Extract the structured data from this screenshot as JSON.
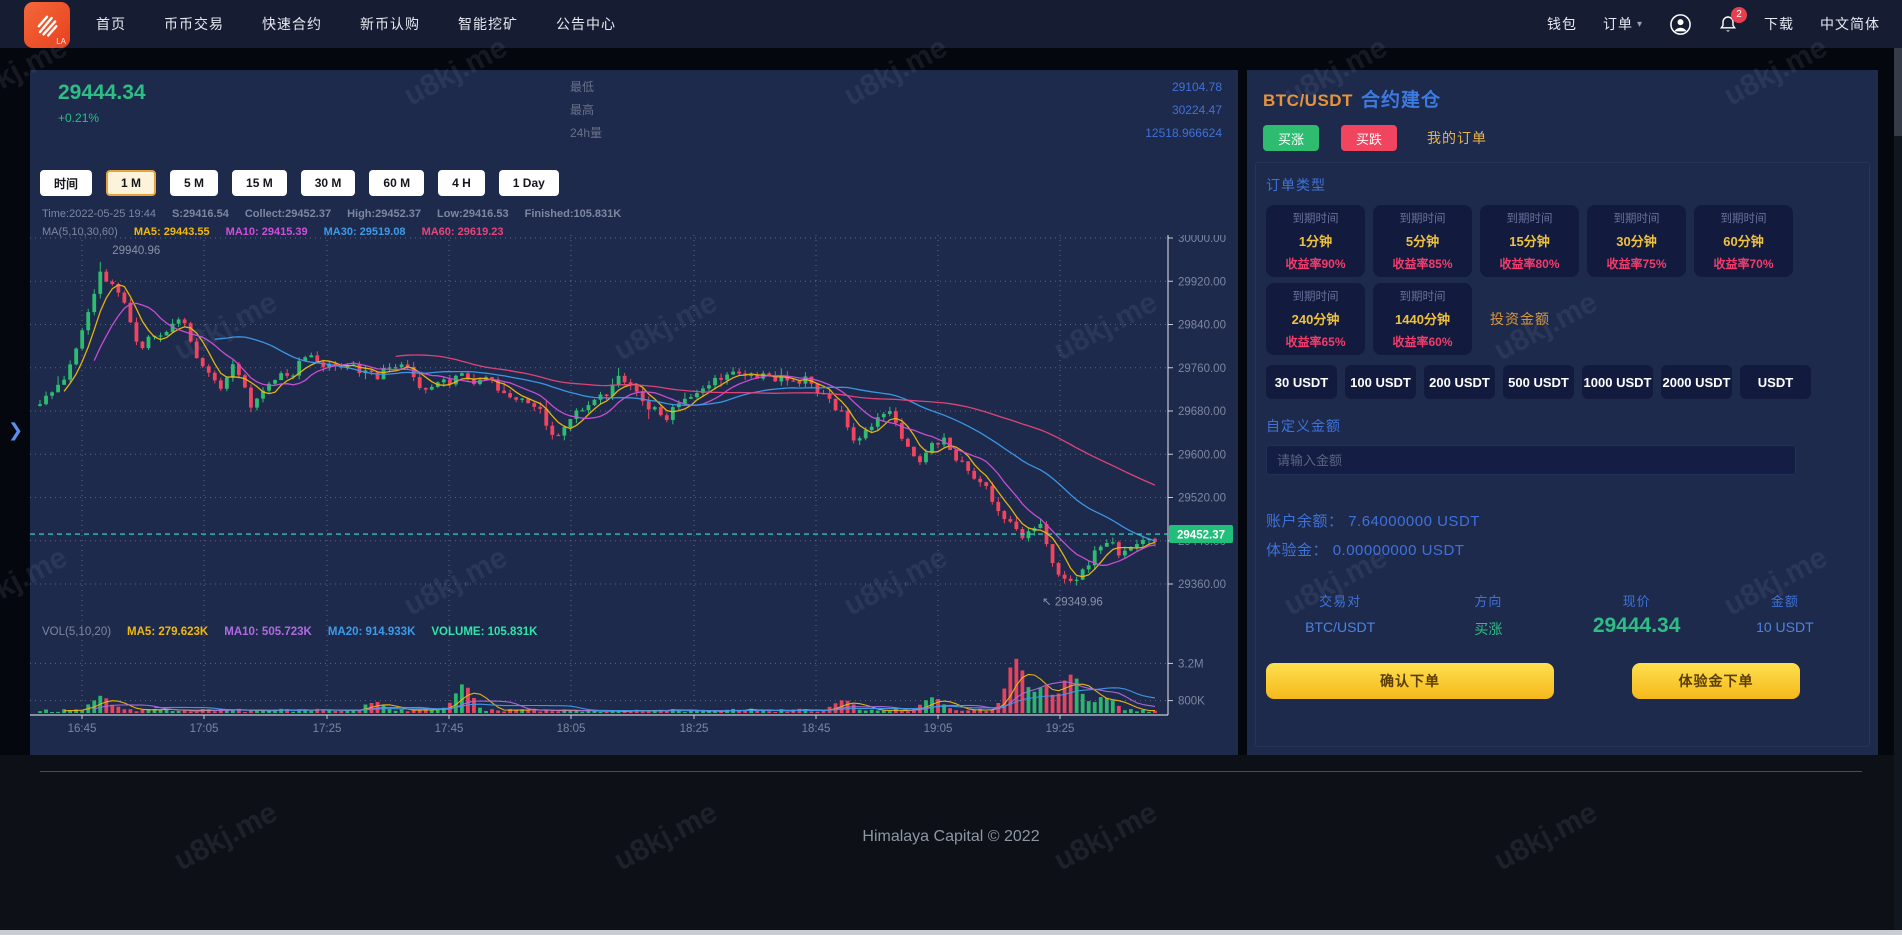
{
  "watermark": {
    "text": "u8kj.me"
  },
  "navbar": {
    "logo_text": "LA",
    "items": [
      "首页",
      "币币交易",
      "快速合约",
      "新币认购",
      "智能挖矿",
      "公告中心"
    ],
    "wallet": "钱包",
    "orders": "订单",
    "badge": "2",
    "download": "下载",
    "language": "中文简体"
  },
  "ticker": {
    "price": "29444.34",
    "change": "+0.21%",
    "stats": [
      {
        "label": "最低",
        "value": "29104.78"
      },
      {
        "label": "最高",
        "value": "30224.47"
      },
      {
        "label": "24h量",
        "value": "12518.966624"
      }
    ]
  },
  "chart": {
    "intervals": [
      {
        "label": "时间"
      },
      {
        "label": "1 M"
      },
      {
        "label": "5 M"
      },
      {
        "label": "15 M"
      },
      {
        "label": "30 M"
      },
      {
        "label": "60 M"
      },
      {
        "label": "4 H"
      },
      {
        "label": "1 Day"
      }
    ],
    "active_interval": 1,
    "legend1": [
      {
        "text": "Time:2022-05-25 19:44",
        "color": "#7e86a0"
      },
      {
        "text": "S:29416.54",
        "color": "#7e86a0"
      },
      {
        "text": "Collect:29452.37",
        "color": "#7e86a0"
      },
      {
        "text": "High:29452.37",
        "color": "#7e86a0"
      },
      {
        "text": "Low:29416.53",
        "color": "#7e86a0"
      },
      {
        "text": "Finished:105.831K",
        "color": "#7e86a0"
      }
    ],
    "legend2": [
      {
        "text": "MA(5,10,30,60)",
        "color": "#7e86a0"
      },
      {
        "text": "MA5: 29443.55",
        "color": "#f0b90b"
      },
      {
        "text": "MA10: 29415.39",
        "color": "#cf4fd8"
      },
      {
        "text": "MA30: 29519.08",
        "color": "#3d9be9"
      },
      {
        "text": "MA60: 29619.23",
        "color": "#e8447a"
      }
    ],
    "vol_legend": [
      {
        "text": "VOL(5,10,20)",
        "color": "#7e86a0"
      },
      {
        "text": "MA5: 279.623K",
        "color": "#f0b90b"
      },
      {
        "text": "MA10: 505.723K",
        "color": "#b06ae0"
      },
      {
        "text": "MA20: 914.933K",
        "color": "#3d9be9"
      },
      {
        "text": "VOLUME: 105.831K",
        "color": "#2ee6a8"
      }
    ]
  },
  "chart_data": {
    "type": "candlestick",
    "symbol": "BTC/USDT",
    "interval": "1m",
    "x_ticks": [
      "16:45",
      "17:05",
      "17:25",
      "17:45",
      "18:05",
      "18:25",
      "18:45",
      "19:05",
      "19:25"
    ],
    "y_ticks": [
      30000,
      29920,
      29840,
      29760,
      29680,
      29600,
      29520,
      29440,
      29360
    ],
    "vol_ticks": [
      {
        "label": "3.2M",
        "value_k": 3200
      },
      {
        "label": "800K",
        "value_k": 800
      }
    ],
    "current_price": 29452.37,
    "current_price_label": "29452.37",
    "high_annotation": "29940.96",
    "low_annotation": "↖ 29349.96",
    "candle_count": 186,
    "price_anchors": [
      [
        0,
        29690
      ],
      [
        0.02,
        29740
      ],
      [
        0.04,
        29830
      ],
      [
        0.055,
        29940
      ],
      [
        0.07,
        29890
      ],
      [
        0.09,
        29800
      ],
      [
        0.11,
        29830
      ],
      [
        0.125,
        29855
      ],
      [
        0.14,
        29790
      ],
      [
        0.16,
        29710
      ],
      [
        0.175,
        29755
      ],
      [
        0.19,
        29690
      ],
      [
        0.21,
        29740
      ],
      [
        0.24,
        29780
      ],
      [
        0.27,
        29755
      ],
      [
        0.3,
        29740
      ],
      [
        0.32,
        29775
      ],
      [
        0.35,
        29720
      ],
      [
        0.38,
        29750
      ],
      [
        0.41,
        29725
      ],
      [
        0.44,
        29690
      ],
      [
        0.46,
        29640
      ],
      [
        0.49,
        29680
      ],
      [
        0.52,
        29740
      ],
      [
        0.54,
        29700
      ],
      [
        0.56,
        29660
      ],
      [
        0.59,
        29730
      ],
      [
        0.62,
        29755
      ],
      [
        0.66,
        29745
      ],
      [
        0.69,
        29740
      ],
      [
        0.71,
        29700
      ],
      [
        0.73,
        29640
      ],
      [
        0.76,
        29670
      ],
      [
        0.79,
        29590
      ],
      [
        0.81,
        29620
      ],
      [
        0.84,
        29560
      ],
      [
        0.86,
        29500
      ],
      [
        0.88,
        29430
      ],
      [
        0.895,
        29480
      ],
      [
        0.91,
        29400
      ],
      [
        0.925,
        29355
      ],
      [
        0.94,
        29380
      ],
      [
        0.955,
        29450
      ],
      [
        0.97,
        29410
      ],
      [
        0.985,
        29440
      ],
      [
        1,
        29452
      ]
    ],
    "volume_spikes": [
      [
        0.055,
        900
      ],
      [
        0.3,
        500
      ],
      [
        0.38,
        1600
      ],
      [
        0.72,
        700
      ],
      [
        0.8,
        800
      ],
      [
        0.875,
        3400
      ],
      [
        0.9,
        1500
      ],
      [
        0.925,
        2400
      ],
      [
        0.955,
        900
      ]
    ],
    "colors": {
      "up": "#2ebd70",
      "down": "#f0445f",
      "ma5": "#f0b90b",
      "ma10": "#cf4fd8",
      "ma30": "#3d9be9",
      "ma60": "#e8447a",
      "vma5": "#f0b90b",
      "vma10": "#b06ae0",
      "vma20": "#3d9be9",
      "price_line": "#2ee6c8",
      "price_tag": "#21c07a",
      "grid": "rgba(255,255,255,0.28)",
      "axis": "rgba(226,231,240,0.85)",
      "tick_text": "#7e86a0"
    }
  },
  "panel": {
    "pair": "BTC/USDT",
    "title": "合约建仓",
    "buy_up": "买涨",
    "buy_down": "买跌",
    "my_orders": "我的订单",
    "order_type_label": "订单类型",
    "expire_label": "到期时间",
    "order_types": [
      {
        "duration": "1分钟",
        "rate": "收益率90%"
      },
      {
        "duration": "5分钟",
        "rate": "收益率85%"
      },
      {
        "duration": "15分钟",
        "rate": "收益率80%"
      },
      {
        "duration": "30分钟",
        "rate": "收益率75%"
      },
      {
        "duration": "60分钟",
        "rate": "收益率70%"
      },
      {
        "duration": "240分钟",
        "rate": "收益率65%"
      },
      {
        "duration": "1440分钟",
        "rate": "收益率60%"
      }
    ],
    "invest_label": "投资金额",
    "amounts": [
      "30 USDT",
      "100 USDT",
      "200 USDT",
      "500 USDT",
      "1000 USDT",
      "2000 USDT",
      "USDT"
    ],
    "custom_label": "自定义金额",
    "input_placeholder": "请输入金额",
    "balance_label": "账户余额：",
    "balance_value": "7.64000000 USDT",
    "trial_label": "体验金：",
    "trial_value": "0.00000000 USDT",
    "summary": [
      {
        "label": "交易对",
        "value": "BTC/USDT",
        "style": "blue"
      },
      {
        "label": "方向",
        "value": "买涨",
        "style": "green"
      },
      {
        "label": "现价",
        "value": "29444.34",
        "style": "green-big"
      },
      {
        "label": "金额",
        "value": "10 USDT",
        "style": "blue"
      }
    ],
    "confirm_button": "确认下单",
    "trial_button": "体验金下单"
  },
  "footer": {
    "text": "Himalaya Capital © 2022"
  }
}
